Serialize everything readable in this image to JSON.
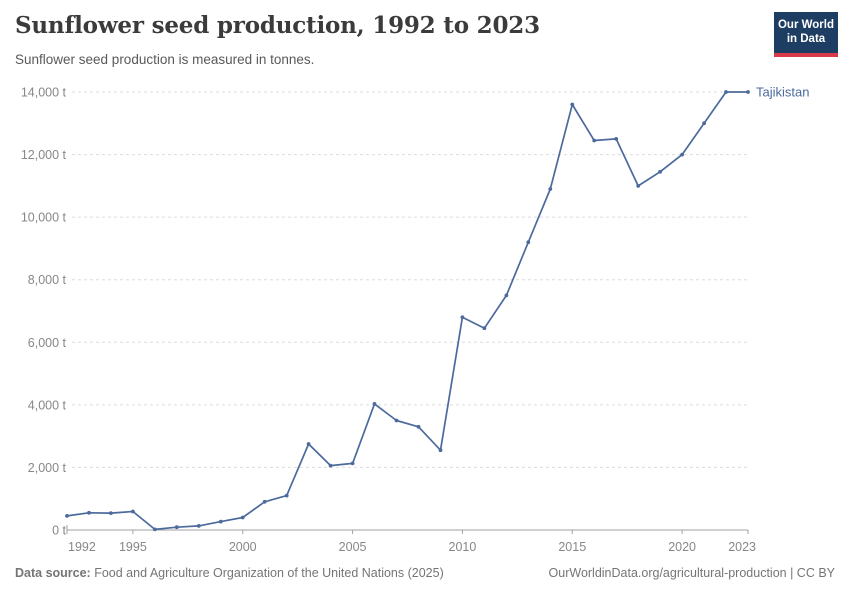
{
  "header": {
    "title": "Sunflower seed production, 1992 to 2023",
    "subtitle": "Sunflower seed production is measured in tonnes.",
    "logo": {
      "line1": "Our World",
      "line2": "in Data"
    }
  },
  "footer": {
    "source_label": "Data source:",
    "source_text": "Food and Agriculture Organization of the United Nations (2025)",
    "credit": "OurWorldinData.org/agricultural-production | CC BY"
  },
  "colors": {
    "series": "#4C6A9C",
    "grid": "#dddddd",
    "axis": "#a1a1a1",
    "tick_text": "#878787",
    "title": "#3b3b3b",
    "logo_bg": "#1d3d63",
    "logo_red": "#d93a4b"
  },
  "chart_data": {
    "type": "line",
    "title": "Sunflower seed production, 1992 to 2023",
    "subtitle": "Sunflower seed production is measured in tonnes.",
    "unit": "t",
    "xlabel": "",
    "ylabel": "",
    "ylim": [
      0,
      14000
    ],
    "yticks": [
      0,
      2000,
      4000,
      6000,
      8000,
      10000,
      12000,
      14000
    ],
    "xticks": [
      1992,
      1995,
      2000,
      2005,
      2010,
      2015,
      2020,
      2023
    ],
    "grid": "horizontal-dashed",
    "legend": "end-of-line-label",
    "x": [
      1992,
      1993,
      1994,
      1995,
      1996,
      1997,
      1998,
      1999,
      2000,
      2001,
      2002,
      2003,
      2004,
      2005,
      2006,
      2007,
      2008,
      2009,
      2010,
      2011,
      2012,
      2013,
      2014,
      2015,
      2016,
      2017,
      2018,
      2019,
      2020,
      2021,
      2022,
      2023
    ],
    "series": [
      {
        "name": "Tajikistan",
        "color": "#4C6A9C",
        "values": [
          450,
          550,
          540,
          590,
          20,
          90,
          130,
          270,
          400,
          900,
          1100,
          2750,
          2060,
          2130,
          4030,
          3500,
          3300,
          2550,
          6800,
          6450,
          7500,
          9200,
          10900,
          13600,
          12450,
          12500,
          11000,
          11450,
          12000,
          13000,
          14000,
          14000
        ]
      }
    ]
  }
}
